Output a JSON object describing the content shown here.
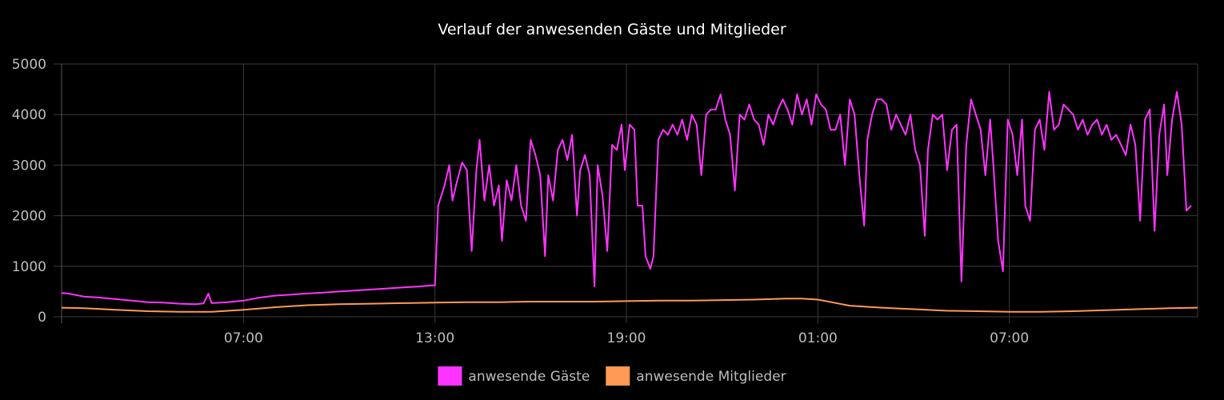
{
  "chart_data": {
    "type": "line",
    "title": "Verlauf der anwesenden Gäste und Mitglieder",
    "xlabel": "",
    "ylabel": "",
    "ylim": [
      0,
      5000
    ],
    "y_ticks": [
      0,
      1000,
      2000,
      3000,
      4000,
      5000
    ],
    "y_tick_labels": [
      "0",
      "1000",
      "2000",
      "3000",
      "4000",
      "5000"
    ],
    "x_range_hours": [
      1.3,
      36.9
    ],
    "x_ticks": [
      {
        "label": "07:00",
        "hour": 7
      },
      {
        "label": "13:00",
        "hour": 13
      },
      {
        "label": "19:00",
        "hour": 19
      },
      {
        "label": "01:00",
        "hour": 25
      },
      {
        "label": "07:00",
        "hour": 31
      }
    ],
    "grid": true,
    "legend_position": "bottom-center",
    "colors": {
      "background": "#000000",
      "guests": "#ff33ff",
      "members": "#ff9955"
    },
    "series": [
      {
        "name": "anwesende Gäste",
        "color": "#ff33ff",
        "points": [
          [
            1.3,
            470
          ],
          [
            1.5,
            460
          ],
          [
            2.0,
            400
          ],
          [
            2.5,
            380
          ],
          [
            3.0,
            350
          ],
          [
            3.5,
            320
          ],
          [
            4.0,
            290
          ],
          [
            4.5,
            280
          ],
          [
            5.0,
            260
          ],
          [
            5.5,
            250
          ],
          [
            5.75,
            265
          ],
          [
            5.9,
            460
          ],
          [
            6.0,
            270
          ],
          [
            6.5,
            290
          ],
          [
            7.0,
            320
          ],
          [
            7.5,
            380
          ],
          [
            8.0,
            420
          ],
          [
            8.5,
            440
          ],
          [
            9.0,
            460
          ],
          [
            9.5,
            480
          ],
          [
            10.0,
            500
          ],
          [
            10.5,
            520
          ],
          [
            11.0,
            540
          ],
          [
            11.5,
            560
          ],
          [
            12.0,
            580
          ],
          [
            12.5,
            600
          ],
          [
            12.9,
            620
          ],
          [
            13.0,
            620
          ],
          [
            13.1,
            2200
          ],
          [
            13.3,
            2600
          ],
          [
            13.45,
            3000
          ],
          [
            13.55,
            2300
          ],
          [
            13.7,
            2700
          ],
          [
            13.85,
            3050
          ],
          [
            14.0,
            2900
          ],
          [
            14.15,
            1300
          ],
          [
            14.3,
            2900
          ],
          [
            14.4,
            3500
          ],
          [
            14.55,
            2300
          ],
          [
            14.7,
            3000
          ],
          [
            14.85,
            2200
          ],
          [
            15.0,
            2600
          ],
          [
            15.1,
            1500
          ],
          [
            15.25,
            2700
          ],
          [
            15.4,
            2300
          ],
          [
            15.55,
            3000
          ],
          [
            15.7,
            2200
          ],
          [
            15.85,
            1900
          ],
          [
            16.0,
            3500
          ],
          [
            16.15,
            3200
          ],
          [
            16.3,
            2800
          ],
          [
            16.45,
            1200
          ],
          [
            16.55,
            2800
          ],
          [
            16.7,
            2300
          ],
          [
            16.85,
            3300
          ],
          [
            17.0,
            3500
          ],
          [
            17.15,
            3100
          ],
          [
            17.3,
            3600
          ],
          [
            17.45,
            2000
          ],
          [
            17.55,
            2900
          ],
          [
            17.7,
            3200
          ],
          [
            17.85,
            2800
          ],
          [
            18.0,
            600
          ],
          [
            18.1,
            3000
          ],
          [
            18.25,
            2400
          ],
          [
            18.4,
            1300
          ],
          [
            18.55,
            3400
          ],
          [
            18.7,
            3300
          ],
          [
            18.85,
            3800
          ],
          [
            18.95,
            2900
          ],
          [
            19.1,
            3800
          ],
          [
            19.25,
            3700
          ],
          [
            19.35,
            2200
          ],
          [
            19.5,
            2200
          ],
          [
            19.6,
            1200
          ],
          [
            19.75,
            950
          ],
          [
            19.85,
            1200
          ],
          [
            20.0,
            3500
          ],
          [
            20.15,
            3700
          ],
          [
            20.3,
            3600
          ],
          [
            20.45,
            3800
          ],
          [
            20.6,
            3600
          ],
          [
            20.75,
            3900
          ],
          [
            20.9,
            3500
          ],
          [
            21.05,
            4000
          ],
          [
            21.2,
            3800
          ],
          [
            21.35,
            2800
          ],
          [
            21.5,
            4000
          ],
          [
            21.65,
            4100
          ],
          [
            21.8,
            4100
          ],
          [
            21.95,
            4400
          ],
          [
            22.1,
            3900
          ],
          [
            22.25,
            3600
          ],
          [
            22.4,
            2500
          ],
          [
            22.55,
            4000
          ],
          [
            22.7,
            3900
          ],
          [
            22.85,
            4200
          ],
          [
            23.0,
            3900
          ],
          [
            23.15,
            3800
          ],
          [
            23.3,
            3400
          ],
          [
            23.45,
            4000
          ],
          [
            23.6,
            3800
          ],
          [
            23.75,
            4100
          ],
          [
            23.9,
            4300
          ],
          [
            24.05,
            4100
          ],
          [
            24.2,
            3800
          ],
          [
            24.35,
            4400
          ],
          [
            24.5,
            4000
          ],
          [
            24.65,
            4300
          ],
          [
            24.8,
            3800
          ],
          [
            24.95,
            4400
          ],
          [
            25.1,
            4200
          ],
          [
            25.25,
            4100
          ],
          [
            25.4,
            3700
          ],
          [
            25.55,
            3700
          ],
          [
            25.7,
            4000
          ],
          [
            25.85,
            3000
          ],
          [
            26.0,
            4300
          ],
          [
            26.15,
            4000
          ],
          [
            26.3,
            2800
          ],
          [
            26.45,
            1800
          ],
          [
            26.55,
            3500
          ],
          [
            26.7,
            4000
          ],
          [
            26.85,
            4300
          ],
          [
            27.0,
            4300
          ],
          [
            27.15,
            4200
          ],
          [
            27.3,
            3700
          ],
          [
            27.45,
            4000
          ],
          [
            27.6,
            3800
          ],
          [
            27.75,
            3600
          ],
          [
            27.9,
            4000
          ],
          [
            28.05,
            3300
          ],
          [
            28.2,
            3000
          ],
          [
            28.35,
            1600
          ],
          [
            28.45,
            3300
          ],
          [
            28.6,
            4000
          ],
          [
            28.75,
            3900
          ],
          [
            28.9,
            4000
          ],
          [
            29.05,
            2900
          ],
          [
            29.2,
            3700
          ],
          [
            29.35,
            3800
          ],
          [
            29.5,
            700
          ],
          [
            29.65,
            3400
          ],
          [
            29.8,
            4300
          ],
          [
            29.95,
            4000
          ],
          [
            30.1,
            3700
          ],
          [
            30.25,
            2800
          ],
          [
            30.4,
            3900
          ],
          [
            30.5,
            3000
          ],
          [
            30.65,
            1500
          ],
          [
            30.8,
            900
          ],
          [
            30.95,
            3900
          ],
          [
            31.1,
            3600
          ],
          [
            31.25,
            2800
          ],
          [
            31.4,
            3900
          ],
          [
            31.5,
            2200
          ],
          [
            31.65,
            1900
          ],
          [
            31.8,
            3700
          ],
          [
            31.95,
            3900
          ],
          [
            32.1,
            3300
          ],
          [
            32.25,
            4450
          ],
          [
            32.4,
            3700
          ],
          [
            32.55,
            3800
          ],
          [
            32.7,
            4200
          ],
          [
            32.85,
            4100
          ],
          [
            33.0,
            4000
          ],
          [
            33.15,
            3700
          ],
          [
            33.3,
            3900
          ],
          [
            33.45,
            3600
          ],
          [
            33.6,
            3800
          ],
          [
            33.75,
            3900
          ],
          [
            33.9,
            3600
          ],
          [
            34.05,
            3800
          ],
          [
            34.2,
            3500
          ],
          [
            34.35,
            3600
          ],
          [
            34.5,
            3400
          ],
          [
            34.65,
            3200
          ],
          [
            34.8,
            3800
          ],
          [
            34.95,
            3400
          ],
          [
            35.1,
            1900
          ],
          [
            35.25,
            3900
          ],
          [
            35.4,
            4100
          ],
          [
            35.55,
            1700
          ],
          [
            35.7,
            3600
          ],
          [
            35.85,
            4200
          ],
          [
            35.95,
            2800
          ],
          [
            36.1,
            3900
          ],
          [
            36.25,
            4450
          ],
          [
            36.4,
            3800
          ],
          [
            36.55,
            2100
          ],
          [
            36.7,
            2200
          ]
        ]
      },
      {
        "name": "anwesende Mitglieder",
        "color": "#ff9955",
        "points": [
          [
            1.3,
            180
          ],
          [
            2.0,
            170
          ],
          [
            3.0,
            140
          ],
          [
            4.0,
            110
          ],
          [
            5.0,
            100
          ],
          [
            6.0,
            100
          ],
          [
            7.0,
            140
          ],
          [
            8.0,
            190
          ],
          [
            9.0,
            230
          ],
          [
            10.0,
            250
          ],
          [
            11.0,
            260
          ],
          [
            12.0,
            270
          ],
          [
            13.0,
            280
          ],
          [
            14.0,
            290
          ],
          [
            15.0,
            290
          ],
          [
            16.0,
            300
          ],
          [
            17.0,
            300
          ],
          [
            18.0,
            300
          ],
          [
            19.0,
            310
          ],
          [
            20.0,
            320
          ],
          [
            21.0,
            320
          ],
          [
            22.0,
            330
          ],
          [
            23.0,
            340
          ],
          [
            24.0,
            360
          ],
          [
            24.5,
            360
          ],
          [
            25.0,
            340
          ],
          [
            25.5,
            280
          ],
          [
            26.0,
            220
          ],
          [
            27.0,
            180
          ],
          [
            28.0,
            150
          ],
          [
            29.0,
            120
          ],
          [
            30.0,
            110
          ],
          [
            31.0,
            100
          ],
          [
            32.0,
            100
          ],
          [
            33.0,
            110
          ],
          [
            34.0,
            130
          ],
          [
            35.0,
            150
          ],
          [
            36.0,
            170
          ],
          [
            36.9,
            180
          ]
        ]
      }
    ]
  }
}
